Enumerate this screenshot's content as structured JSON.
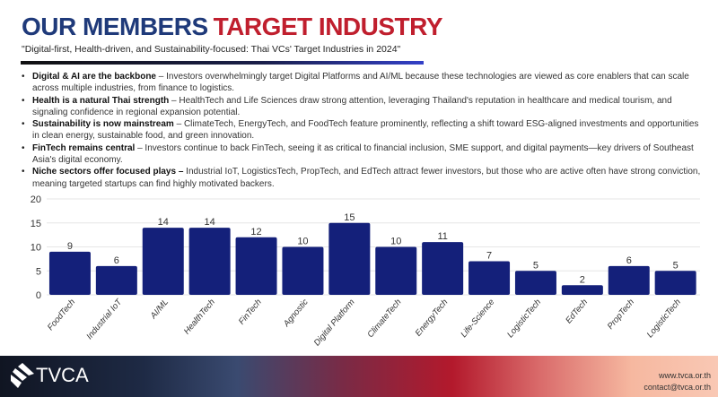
{
  "header": {
    "title_part1": "OUR MEMBERS",
    "title_part2": "TARGET INDUSTRY",
    "subtitle": "\"Digital-first, Health-driven, and Sustainability-focused: Thai VCs' Target Industries in 2024\""
  },
  "bullets": [
    {
      "bold": "Digital & AI are the backbone",
      "text": " – Investors overwhelmingly target Digital Platforms and AI/ML because these technologies are viewed as core enablers that can scale across multiple industries, from finance to logistics."
    },
    {
      "bold": "Health is a natural Thai strength",
      "text": " – HealthTech and Life Sciences draw strong attention, leveraging Thailand's reputation in healthcare and medical tourism, and signaling confidence in regional expansion potential."
    },
    {
      "bold": "Sustainability is now mainstream",
      "text": " – ClimateTech, EnergyTech, and FoodTech feature prominently, reflecting a shift toward ESG-aligned investments and opportunities in clean energy, sustainable food, and green innovation."
    },
    {
      "bold": "FinTech remains central",
      "text": " – Investors continue to back FinTech, seeing it as critical to financial inclusion, SME support, and digital payments—key drivers of Southeast Asia's digital economy."
    },
    {
      "bold": "Niche sectors offer focused plays –",
      "text": " Industrial IoT, LogisticsTech, PropTech, and EdTech attract fewer investors, but those who are active often have strong conviction, meaning targeted startups can find highly motivated backers."
    }
  ],
  "chart_data": {
    "type": "bar",
    "categories": [
      "FoodTech",
      "Industrial IoT",
      "AI/ML",
      "HealthTech",
      "FinTech",
      "Agnostic",
      "Digital Platform",
      "ClimateTech",
      "EnergyTech",
      "Life-Science",
      "LogisticTech",
      "EdTech",
      "PropTech",
      "LogisticTech"
    ],
    "values": [
      9,
      6,
      14,
      14,
      12,
      10,
      15,
      10,
      11,
      7,
      5,
      2,
      6,
      5
    ],
    "ylim": [
      0,
      20
    ],
    "yticks": [
      0,
      5,
      10,
      15,
      20
    ],
    "bar_color": "#14207a",
    "title": "",
    "xlabel": "",
    "ylabel": ""
  },
  "footer": {
    "logo": "TVCA",
    "website": "www.tvca.or.th",
    "email": "contact@tvca.or.th"
  }
}
